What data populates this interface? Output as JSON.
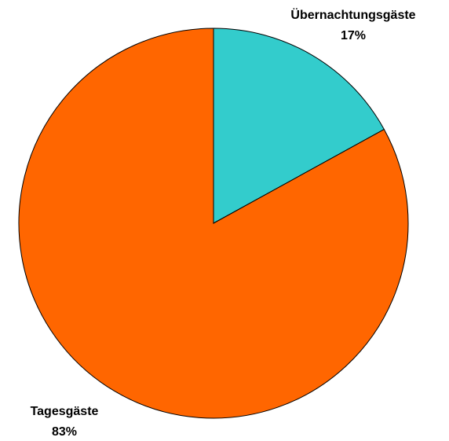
{
  "chart_data": {
    "type": "pie",
    "categories": [
      "Übernachtungsgäste",
      "Tagesgäste"
    ],
    "values": [
      17,
      83
    ],
    "value_labels": [
      "17%",
      "83%"
    ],
    "colors": [
      "#33cccc",
      "#ff6600"
    ]
  }
}
